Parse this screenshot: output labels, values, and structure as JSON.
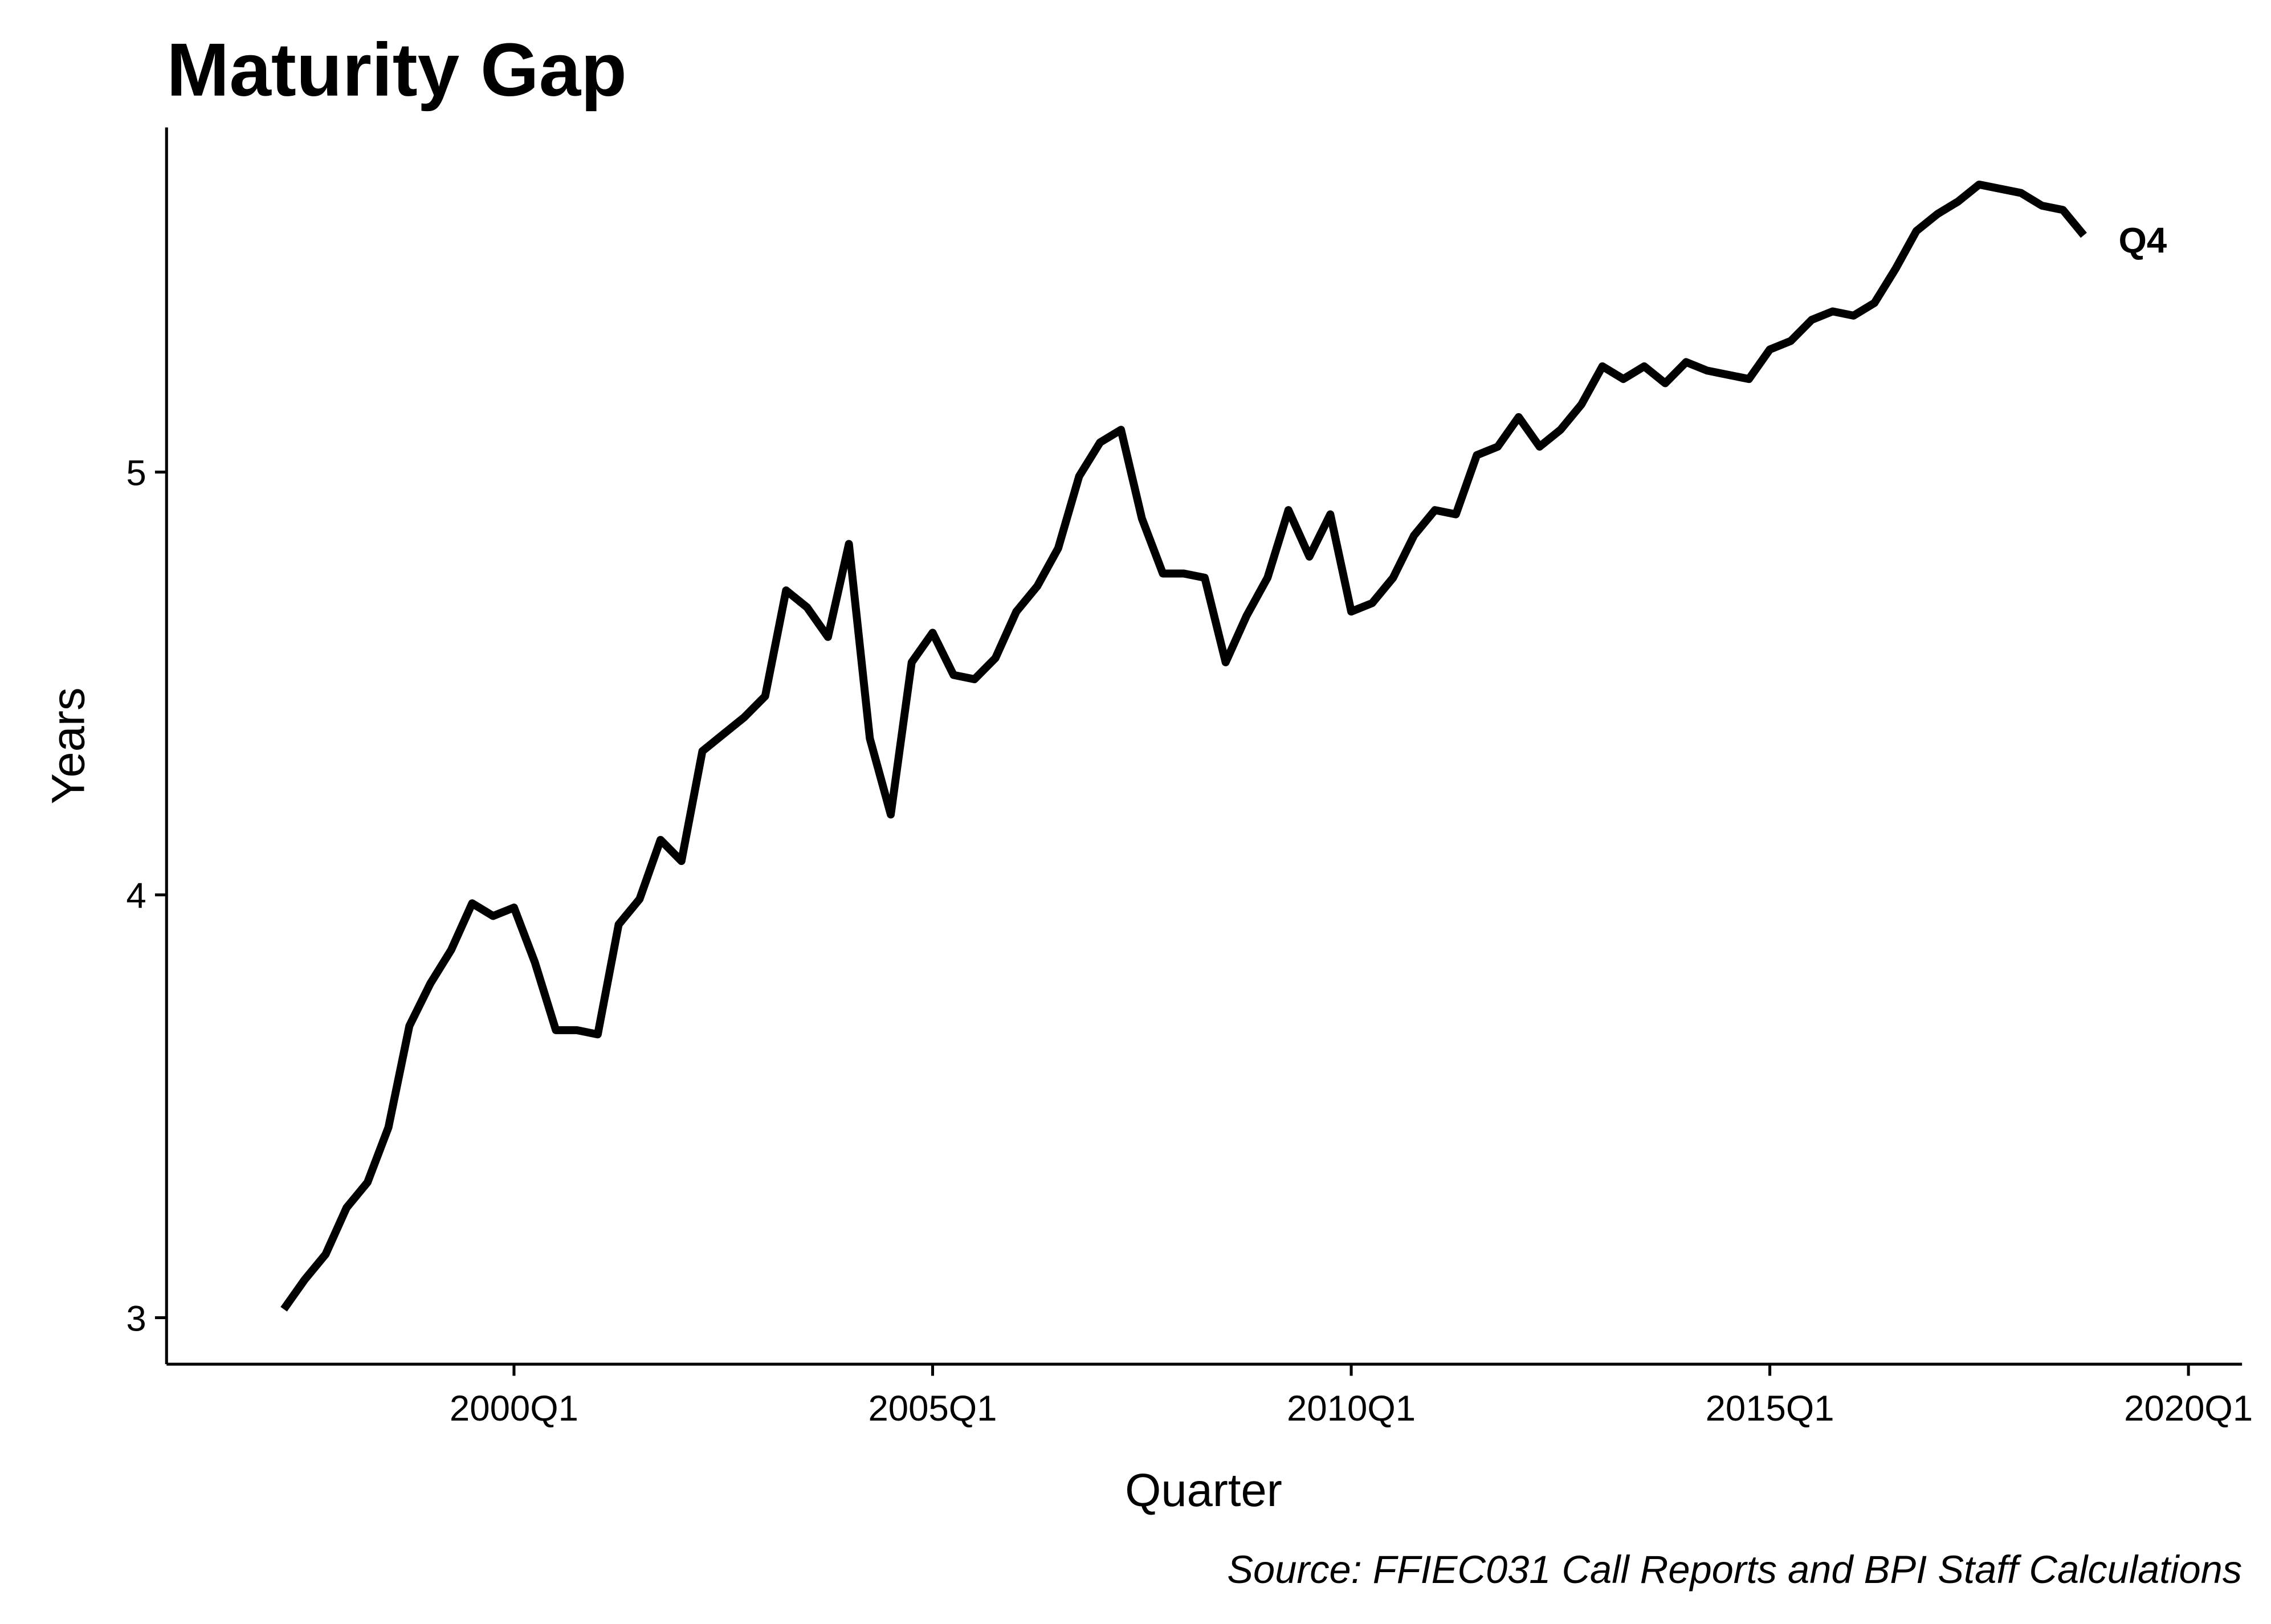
{
  "chart_data": {
    "type": "line",
    "title": "Maturity Gap",
    "x_label": "Quarter",
    "y_label": "Years",
    "caption": "Source: FFIEC031 Call Reports and BPI Staff Calculations",
    "annotation": "Q4",
    "x": [
      1997.25,
      1997.5,
      1997.75,
      1998,
      1998.25,
      1998.5,
      1998.75,
      1999,
      1999.25,
      1999.5,
      1999.75,
      2000,
      2000.25,
      2000.5,
      2000.75,
      2001,
      2001.25,
      2001.5,
      2001.75,
      2002,
      2002.25,
      2002.5,
      2002.75,
      2003,
      2003.25,
      2003.5,
      2003.75,
      2004,
      2004.25,
      2004.5,
      2004.75,
      2005,
      2005.25,
      2005.5,
      2005.75,
      2006,
      2006.25,
      2006.5,
      2006.75,
      2007,
      2007.25,
      2007.5,
      2007.75,
      2008,
      2008.25,
      2008.5,
      2008.75,
      2009,
      2009.25,
      2009.5,
      2009.75,
      2010,
      2010.25,
      2010.5,
      2010.75,
      2011,
      2011.25,
      2011.5,
      2011.75,
      2012,
      2012.25,
      2012.5,
      2012.75,
      2013,
      2013.25,
      2013.5,
      2013.75,
      2014,
      2014.25,
      2014.5,
      2014.75,
      2015,
      2015.25,
      2015.5,
      2015.75,
      2016,
      2016.25,
      2016.5,
      2016.75,
      2017,
      2017.25,
      2017.5,
      2017.75,
      2018,
      2018.25,
      2018.5,
      2018.75
    ],
    "series": [
      {
        "name": "Maturity Gap",
        "color": "#000000",
        "values": [
          3.02,
          3.09,
          3.15,
          3.26,
          3.32,
          3.45,
          3.69,
          3.79,
          3.87,
          3.98,
          3.95,
          3.97,
          3.84,
          3.68,
          3.68,
          3.67,
          3.93,
          3.99,
          4.13,
          4.08,
          4.34,
          4.38,
          4.42,
          4.47,
          4.72,
          4.68,
          4.61,
          4.83,
          4.37,
          4.19,
          4.55,
          4.62,
          4.52,
          4.51,
          4.56,
          4.67,
          4.73,
          4.82,
          4.99,
          5.07,
          5.1,
          4.89,
          4.76,
          4.76,
          4.75,
          4.55,
          4.66,
          4.75,
          4.91,
          4.8,
          4.9,
          4.67,
          4.69,
          4.75,
          4.85,
          4.91,
          4.9,
          5.04,
          5.06,
          5.13,
          5.06,
          5.1,
          5.16,
          5.25,
          5.22,
          5.25,
          5.21,
          5.26,
          5.24,
          5.23,
          5.22,
          5.29,
          5.31,
          5.36,
          5.38,
          5.37,
          5.4,
          5.48,
          5.57,
          5.61,
          5.64,
          5.68,
          5.67,
          5.66,
          5.63,
          5.62,
          5.56
        ]
      }
    ],
    "xlim": [
      1995.85,
      2020.64
    ],
    "xticks": [
      {
        "value": 2000,
        "label": "2000Q1"
      },
      {
        "value": 2005,
        "label": "2005Q1"
      },
      {
        "value": 2010,
        "label": "2010Q1"
      },
      {
        "value": 2015,
        "label": "2015Q1"
      },
      {
        "value": 2020,
        "label": "2020Q1"
      }
    ],
    "ylim": [
      2.89,
      5.815
    ],
    "yticks": [
      3,
      4,
      5
    ],
    "grid": false
  }
}
